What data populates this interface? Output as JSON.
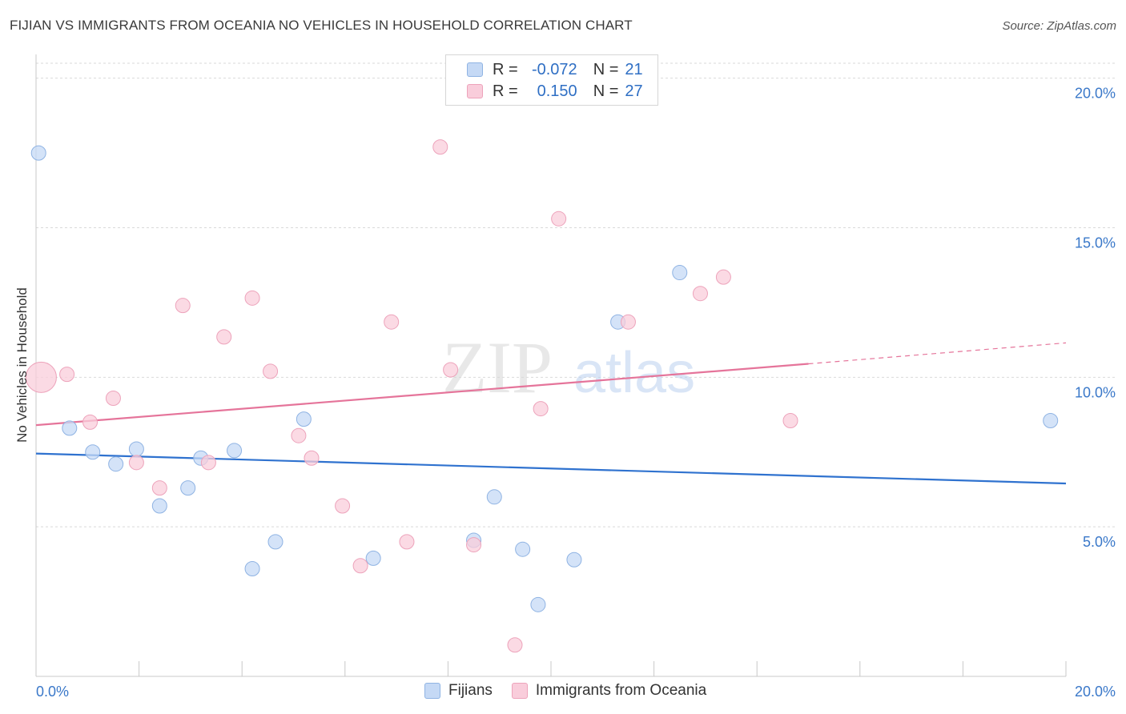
{
  "title": "FIJIAN VS IMMIGRANTS FROM OCEANIA NO VEHICLES IN HOUSEHOLD CORRELATION CHART",
  "source": "Source: ZipAtlas.com",
  "watermark": {
    "zip": "ZIP",
    "atlas": "atlas"
  },
  "legend": {
    "rows": [
      {
        "r_label": "R =",
        "r_value": "-0.072",
        "n_label": "N =",
        "n_value": "21"
      },
      {
        "r_label": "R =",
        "r_value": "0.150",
        "n_label": "N =",
        "n_value": "27"
      }
    ]
  },
  "colors": {
    "fijians_fill": "#c5d9f5",
    "fijians_stroke": "#8fb3e3",
    "fijians_line": "#2f72cf",
    "oceania_fill": "#f9cddb",
    "oceania_stroke": "#eda3bb",
    "oceania_line": "#e5749a",
    "grid": "#d9d9d9",
    "tick_text": "#3a78c9"
  },
  "chart_data": {
    "type": "scatter",
    "title": "FIJIAN VS IMMIGRANTS FROM OCEANIA NO VEHICLES IN HOUSEHOLD CORRELATION CHART",
    "xlabel": "",
    "ylabel": "No Vehicles in Household",
    "xlim": [
      0,
      20
    ],
    "ylim": [
      0,
      20.5
    ],
    "x_tick_labels": [
      "0.0%",
      "20.0%"
    ],
    "y_ticks": [
      5,
      10,
      15,
      20
    ],
    "y_tick_labels": [
      "5.0%",
      "10.0%",
      "15.0%",
      "20.0%"
    ],
    "grid": true,
    "series": [
      {
        "name": "Fijians",
        "points": [
          {
            "x": 0.05,
            "y": 17.5,
            "large": false
          },
          {
            "x": 0.65,
            "y": 8.3
          },
          {
            "x": 1.1,
            "y": 7.5
          },
          {
            "x": 1.55,
            "y": 7.1
          },
          {
            "x": 1.95,
            "y": 7.6
          },
          {
            "x": 2.4,
            "y": 5.7
          },
          {
            "x": 2.95,
            "y": 6.3
          },
          {
            "x": 3.2,
            "y": 7.3
          },
          {
            "x": 3.85,
            "y": 7.55
          },
          {
            "x": 4.2,
            "y": 3.6
          },
          {
            "x": 4.65,
            "y": 4.5
          },
          {
            "x": 5.2,
            "y": 8.6
          },
          {
            "x": 6.55,
            "y": 3.95
          },
          {
            "x": 8.5,
            "y": 4.55
          },
          {
            "x": 8.9,
            "y": 6.0
          },
          {
            "x": 9.45,
            "y": 4.25
          },
          {
            "x": 9.75,
            "y": 2.4
          },
          {
            "x": 10.45,
            "y": 3.9
          },
          {
            "x": 11.3,
            "y": 11.85
          },
          {
            "x": 12.5,
            "y": 13.5
          },
          {
            "x": 19.7,
            "y": 8.55
          }
        ],
        "trend": {
          "x0": 0,
          "y0": 7.45,
          "x1": 20,
          "y1": 6.45
        }
      },
      {
        "name": "Immigrants from Oceania",
        "points": [
          {
            "x": 0.1,
            "y": 10.0,
            "large": true
          },
          {
            "x": 0.6,
            "y": 10.1
          },
          {
            "x": 1.05,
            "y": 8.5
          },
          {
            "x": 1.5,
            "y": 9.3
          },
          {
            "x": 1.95,
            "y": 7.15
          },
          {
            "x": 2.4,
            "y": 6.3
          },
          {
            "x": 2.85,
            "y": 12.4
          },
          {
            "x": 3.35,
            "y": 7.15
          },
          {
            "x": 3.65,
            "y": 11.35
          },
          {
            "x": 4.2,
            "y": 12.65
          },
          {
            "x": 4.55,
            "y": 10.2
          },
          {
            "x": 5.1,
            "y": 8.05
          },
          {
            "x": 5.35,
            "y": 7.3
          },
          {
            "x": 5.95,
            "y": 5.7
          },
          {
            "x": 6.3,
            "y": 3.7
          },
          {
            "x": 6.9,
            "y": 11.85
          },
          {
            "x": 7.2,
            "y": 4.5
          },
          {
            "x": 7.85,
            "y": 17.7
          },
          {
            "x": 8.05,
            "y": 10.25
          },
          {
            "x": 8.5,
            "y": 4.4
          },
          {
            "x": 9.3,
            "y": 1.05
          },
          {
            "x": 9.8,
            "y": 8.95
          },
          {
            "x": 10.15,
            "y": 15.3
          },
          {
            "x": 11.5,
            "y": 11.85
          },
          {
            "x": 12.9,
            "y": 12.8
          },
          {
            "x": 13.35,
            "y": 13.35
          },
          {
            "x": 14.65,
            "y": 8.55
          }
        ],
        "trend": {
          "x0": 0,
          "y0": 8.4,
          "x1": 15,
          "y1": 10.45
        },
        "trend_dashed": {
          "x0": 15,
          "y0": 10.45,
          "x1": 20,
          "y1": 11.15
        }
      }
    ]
  },
  "bottom_legend": [
    {
      "label": "Fijians"
    },
    {
      "label": "Immigrants from Oceania"
    }
  ]
}
